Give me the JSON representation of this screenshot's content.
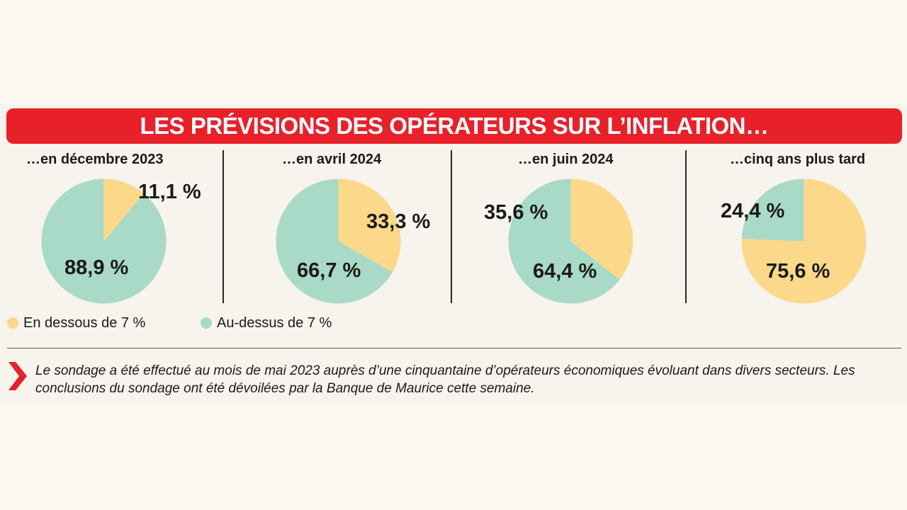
{
  "title": "LES PRÉVISIONS DES OPÉRATEURS SUR L’INFLATION…",
  "colors": {
    "below": "#fcd88a",
    "above": "#a9dac7",
    "accent": "#e8202a"
  },
  "legend": [
    {
      "label": "En dessous de 7 %",
      "color": "#fcd88a"
    },
    {
      "label": "Au-dessus de 7 %",
      "color": "#a9dac7"
    }
  ],
  "chart_data": [
    {
      "type": "pie",
      "title": "…en décembre 2023",
      "labels": [
        "En dessous de 7 %",
        "Au-dessus de 7 %"
      ],
      "values": [
        11.1,
        88.9
      ],
      "value_labels": [
        "11,1 %",
        "88,9 %"
      ]
    },
    {
      "type": "pie",
      "title": "…en avril 2024",
      "labels": [
        "En dessous de 7 %",
        "Au-dessus de 7 %"
      ],
      "values": [
        33.3,
        66.7
      ],
      "value_labels": [
        "33,3 %",
        "66,7 %"
      ]
    },
    {
      "type": "pie",
      "title": "…en juin 2024",
      "labels": [
        "En dessous de 7 %",
        "Au-dessus de 7 %"
      ],
      "values": [
        35.6,
        64.4
      ],
      "value_labels": [
        "35,6 %",
        "64,4 %"
      ]
    },
    {
      "type": "pie",
      "title": "…cinq ans plus tard",
      "labels": [
        "En dessous de 7 %",
        "Au-dessus de 7 %"
      ],
      "values": [
        75.6,
        24.4
      ],
      "value_labels": [
        "75,6 %",
        "24,4 %"
      ]
    }
  ],
  "note": "Le sondage a été effectué au mois de mai 2023 auprès d’une cinquantaine d’opérateurs économiques évoluant dans divers secteurs. Les conclusions du sondage ont été dévoilées par la Banque de Maurice cette semaine."
}
